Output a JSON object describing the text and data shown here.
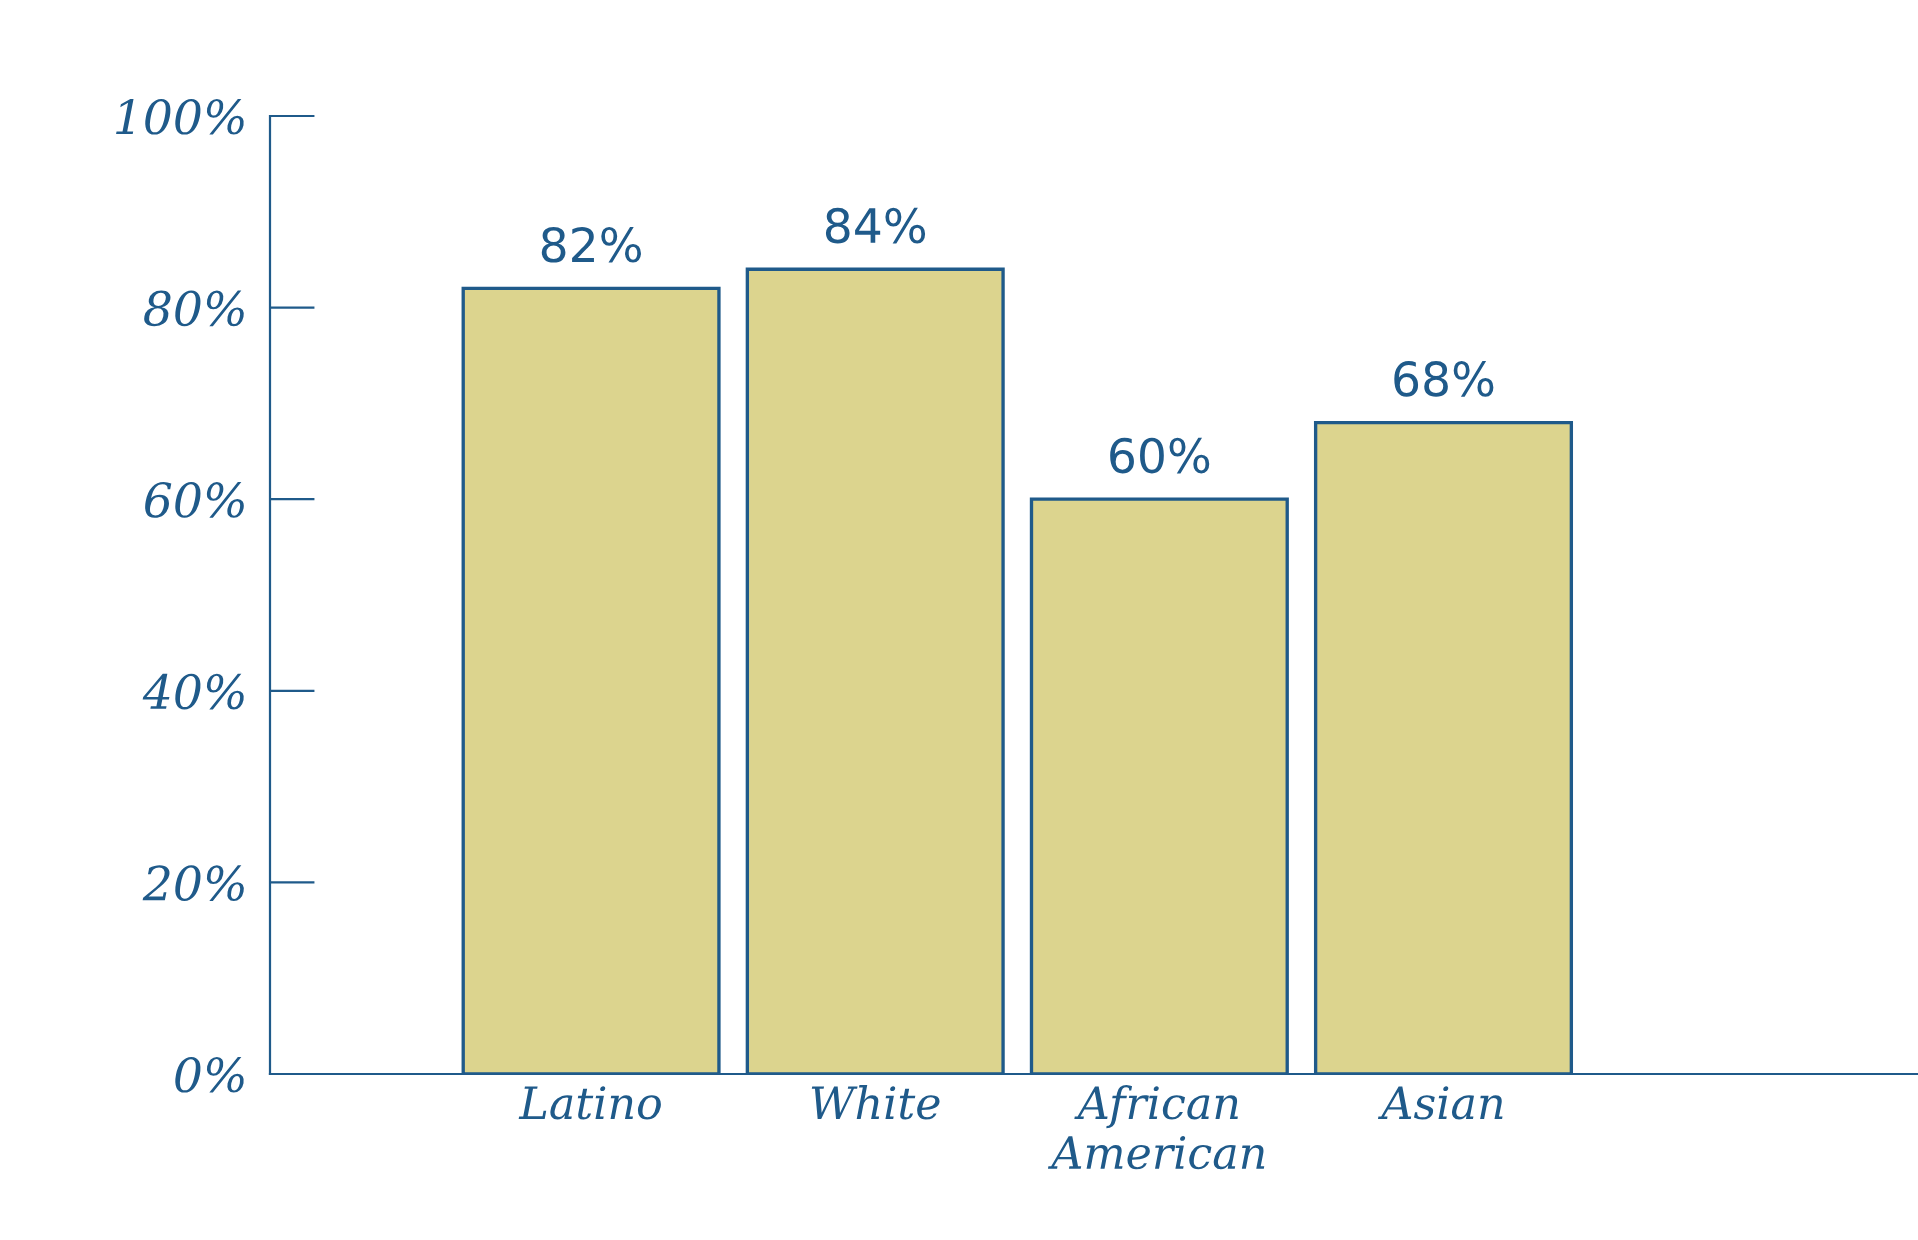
{
  "chart_data": {
    "type": "bar",
    "categories": [
      "Latino",
      "White",
      "African\nAmerican",
      "Asian"
    ],
    "values": [
      82,
      84,
      60,
      68
    ],
    "value_labels": [
      "82%",
      "84%",
      "60%",
      "68%"
    ],
    "color": "#dcd48e",
    "ylim": [
      0,
      100
    ],
    "yticks": [
      {
        "value": 0,
        "label": "0%"
      },
      {
        "value": 20,
        "label": "20%"
      },
      {
        "value": 40,
        "label": "40%"
      },
      {
        "value": 60,
        "label": "60%"
      },
      {
        "value": 80,
        "label": "80%"
      },
      {
        "value": 100,
        "label": "100%"
      }
    ],
    "grid": false,
    "legend": false
  }
}
